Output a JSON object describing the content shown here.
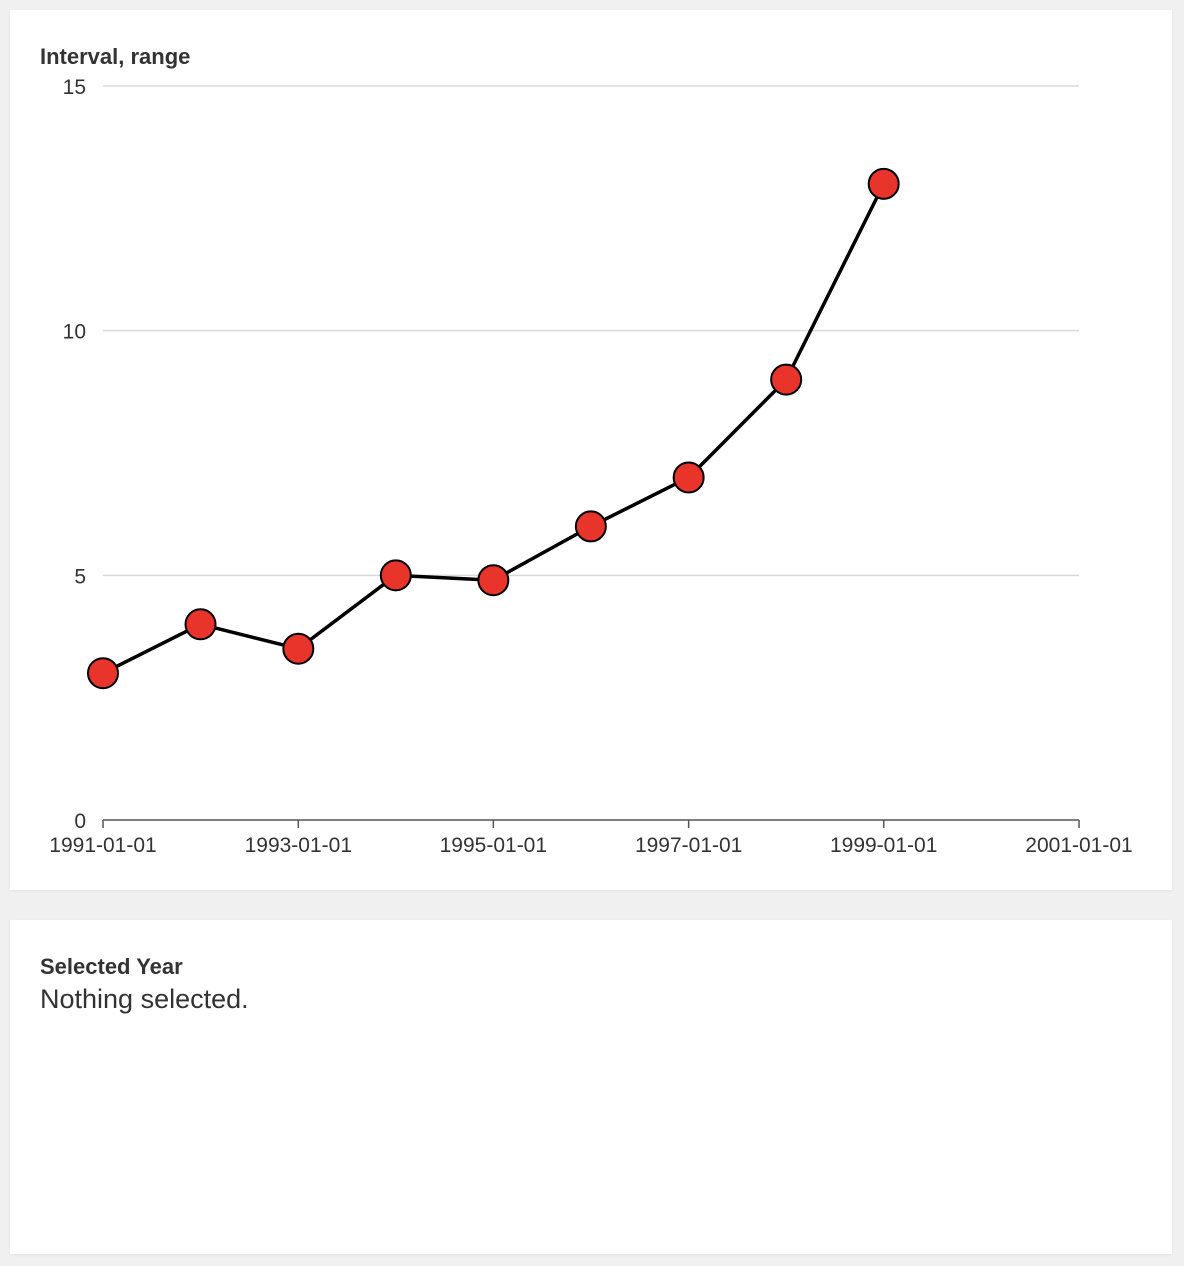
{
  "chart_data": {
    "type": "line",
    "ylabel": "Interval, range",
    "x": [
      "1991-01-01",
      "1992-01-01",
      "1993-01-01",
      "1994-01-01",
      "1995-01-01",
      "1996-01-01",
      "1997-01-01",
      "1998-01-01",
      "1999-01-01"
    ],
    "values": [
      3,
      4,
      3.5,
      5,
      4.9,
      6,
      7,
      9,
      13
    ],
    "xlim": [
      "1991-01-01",
      "2001-01-01"
    ],
    "xticks": [
      "1991-01-01",
      "1993-01-01",
      "1995-01-01",
      "1997-01-01",
      "1999-01-01",
      "2001-01-01"
    ],
    "ylim": [
      0,
      15
    ],
    "yticks": [
      0,
      5,
      10,
      15
    ],
    "grid": true,
    "colors": {
      "line": "#000000",
      "point_fill": "#e8342a",
      "point_stroke": "#000000",
      "grid": "#d9d9d9"
    }
  },
  "selection": {
    "label": "Selected Year",
    "value": "Nothing selected."
  }
}
